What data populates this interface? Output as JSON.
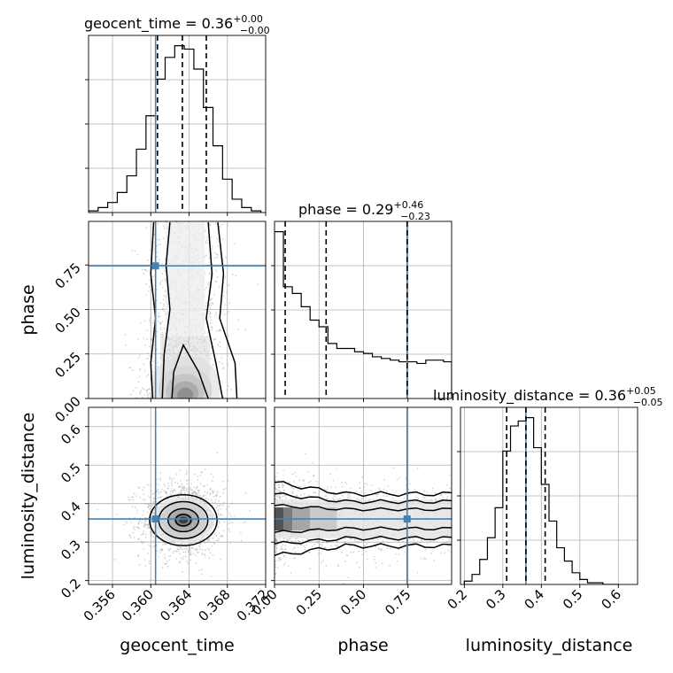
{
  "chart_data": {
    "type": "corner",
    "parameters": [
      "geocent_time",
      "phase",
      "luminosity_distance"
    ],
    "truth_color": "#4682b4",
    "titles": [
      {
        "param": "geocent_time",
        "prefix": "geocent_time = 0.36",
        "sup": "+0.00",
        "sub": "−0.00"
      },
      {
        "param": "phase",
        "prefix": "phase = 0.29",
        "sup": "+0.46",
        "sub": "−0.23"
      },
      {
        "param": "luminosity_distance",
        "prefix": "luminosity_distance = 0.36",
        "sup": "+0.05",
        "sub": "−0.05"
      }
    ],
    "axes": {
      "geocent_time": {
        "range": [
          0.3535,
          0.372
        ],
        "ticks": [
          0.356,
          0.36,
          0.364,
          0.368,
          0.372
        ],
        "tick_labels": [
          "0.356",
          "0.360",
          "0.364",
          "0.368",
          "0.372"
        ],
        "label": "geocent_time"
      },
      "phase": {
        "range": [
          0.0,
          0.995
        ],
        "ticks": [
          0.0,
          0.25,
          0.5,
          0.75
        ],
        "tick_labels": [
          "0.00",
          "0.25",
          "0.50",
          "0.75"
        ],
        "label": "phase"
      },
      "luminosity_distance": {
        "range": [
          0.19,
          0.65
        ],
        "ticks": [
          0.2,
          0.3,
          0.4,
          0.5,
          0.6
        ],
        "tick_labels": [
          "0.2",
          "0.3",
          "0.4",
          "0.5",
          "0.6"
        ],
        "label": "luminosity_distance"
      }
    },
    "truths": {
      "geocent_time": 0.3605,
      "phase": 0.745,
      "luminosity_distance": 0.36
    },
    "quantiles": {
      "geocent_time": [
        0.3607,
        0.3633,
        0.3658
      ],
      "phase": [
        0.06,
        0.29,
        0.745
      ],
      "luminosity_distance": [
        0.31,
        0.36,
        0.41
      ]
    },
    "histograms": {
      "geocent_time": {
        "edges": [
          0.3535,
          0.3545,
          0.3555,
          0.3565,
          0.3575,
          0.3585,
          0.3595,
          0.3605,
          0.3615,
          0.3625,
          0.3635,
          0.3645,
          0.3655,
          0.3665,
          0.3675,
          0.3685,
          0.3695,
          0.3705,
          0.3715
        ],
        "counts": [
          1,
          3,
          6,
          12,
          22,
          38,
          58,
          80,
          93,
          100,
          98,
          86,
          63,
          40,
          20,
          8,
          3,
          1
        ]
      },
      "phase": {
        "edges": [
          0.0,
          0.05,
          0.1,
          0.15,
          0.2,
          0.25,
          0.3,
          0.35,
          0.4,
          0.45,
          0.5,
          0.55,
          0.6,
          0.65,
          0.7,
          0.75,
          0.8,
          0.85,
          0.9,
          0.95,
          0.995
        ],
        "counts": [
          100,
          67,
          63,
          55,
          47,
          43,
          33,
          30,
          30,
          28,
          27,
          25,
          24,
          23,
          22,
          22,
          21,
          23,
          23,
          22
        ]
      },
      "luminosity_distance": {
        "edges": [
          0.2,
          0.22,
          0.24,
          0.26,
          0.28,
          0.3,
          0.32,
          0.34,
          0.36,
          0.38,
          0.4,
          0.42,
          0.44,
          0.46,
          0.48,
          0.5,
          0.52,
          0.54,
          0.56,
          0.58,
          0.6
        ],
        "counts": [
          2,
          6,
          15,
          28,
          46,
          80,
          95,
          98,
          100,
          82,
          60,
          38,
          22,
          14,
          7,
          3,
          1,
          1,
          0,
          0
        ]
      }
    },
    "joint_pairs": [
      {
        "x": "geocent_time",
        "y": "phase"
      },
      {
        "x": "geocent_time",
        "y": "luminosity_distance"
      },
      {
        "x": "phase",
        "y": "luminosity_distance"
      }
    ]
  }
}
